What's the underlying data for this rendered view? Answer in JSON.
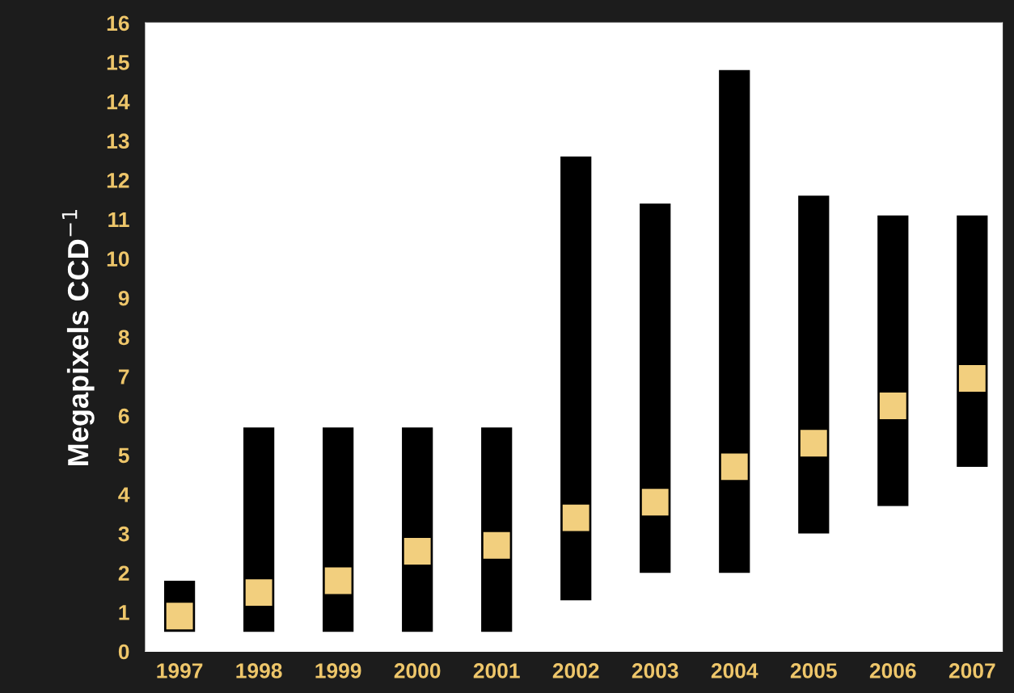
{
  "chart_data": {
    "type": "bar",
    "ylabel": "Megapixels CCD$^{−1}$",
    "categories": [
      "1997",
      "1998",
      "1999",
      "2000",
      "2001",
      "2002",
      "2003",
      "2004",
      "2005",
      "2006",
      "2007"
    ],
    "series": [
      {
        "color": "#000000",
        "base": [
          0.5,
          0.5,
          0.5,
          0.5,
          0.5,
          1.3,
          2.0,
          2.0,
          3.0,
          3.7,
          4.7
        ],
        "values": [
          1.3,
          5.2,
          5.2,
          5.2,
          5.2,
          11.3,
          9.4,
          12.8,
          8.6,
          7.4,
          6.4
        ]
      },
      {
        "type": "scatter",
        "color": "#f2cf7e",
        "marker": "square",
        "values": [
          0.9,
          1.5,
          1.8,
          2.55,
          2.7,
          3.4,
          3.8,
          4.7,
          5.3,
          6.25,
          6.95
        ]
      }
    ],
    "ylim": [
      0,
      16
    ],
    "yticks": [
      0,
      1,
      2,
      3,
      4,
      5,
      6,
      7,
      8,
      9,
      10,
      11,
      12,
      13,
      14,
      15,
      16
    ],
    "grid": false,
    "legend": false
  }
}
